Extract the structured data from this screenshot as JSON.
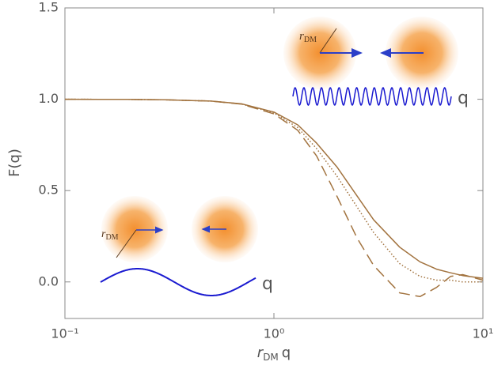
{
  "chart_data": {
    "type": "line",
    "xlabel": [
      "r",
      "DM",
      "q"
    ],
    "ylabel": "F(q)",
    "log_x": true,
    "xlim": [
      0.1,
      10
    ],
    "xticks": [
      {
        "value": 0.1,
        "label": "10⁻¹"
      },
      {
        "value": 1,
        "label": "10⁰"
      },
      {
        "value": 10,
        "label": "10¹"
      }
    ],
    "ylim": [
      -0.2,
      1.5
    ],
    "yticks": [
      {
        "value": 0,
        "label": "0.0"
      },
      0.5,
      {
        "value": 1,
        "label": "1.0"
      },
      1.5
    ],
    "x": [
      0.1,
      0.2,
      0.3,
      0.5,
      0.7,
      1,
      1.3,
      1.6,
      2,
      2.5,
      3,
      4,
      5,
      6,
      7,
      8,
      10
    ],
    "series": [
      {
        "color": "#a2733f",
        "style": "solid",
        "values": [
          1,
          0.999,
          0.997,
          0.99,
          0.975,
          0.93,
          0.86,
          0.76,
          0.63,
          0.47,
          0.34,
          0.19,
          0.11,
          0.07,
          0.05,
          0.035,
          0.02
        ]
      },
      {
        "color": "#a2733f",
        "style": "dotted",
        "values": [
          1,
          0.999,
          0.997,
          0.99,
          0.974,
          0.925,
          0.845,
          0.73,
          0.58,
          0.41,
          0.27,
          0.1,
          0.03,
          0.01,
          0.01,
          0,
          0
        ]
      },
      {
        "color": "#a2733f",
        "style": "dashed",
        "values": [
          1,
          0.999,
          0.997,
          0.99,
          0.973,
          0.92,
          0.83,
          0.69,
          0.47,
          0.24,
          0.09,
          -0.06,
          -0.08,
          -0.03,
          0.03,
          0.04,
          0.01
        ]
      }
    ],
    "insets": [
      {
        "radius_label": [
          "r",
          "DM"
        ],
        "wave_label": "q"
      },
      {
        "radius_label": [
          "r",
          "DM"
        ],
        "wave_label": "q"
      }
    ]
  }
}
